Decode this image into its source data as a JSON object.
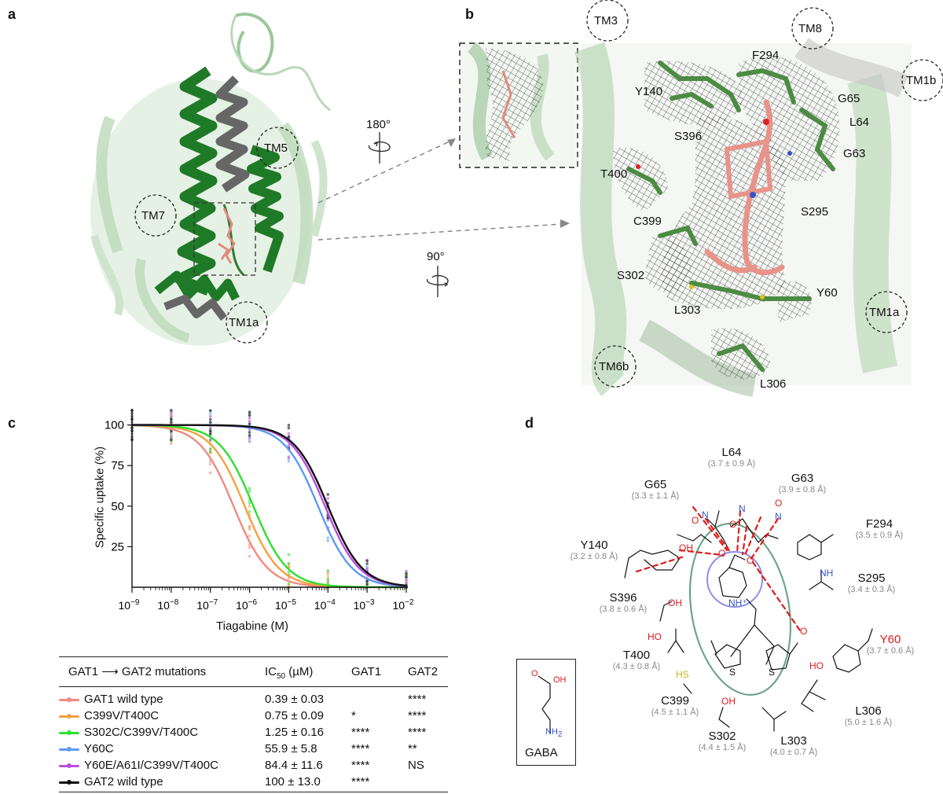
{
  "panels": {
    "a": "a",
    "b": "b",
    "c": "c",
    "d": "d"
  },
  "panel_a": {
    "tm_labels": [
      "TM5",
      "TM7",
      "TM1a"
    ],
    "rotation_180": "180°",
    "rotation_90": "90°"
  },
  "panel_b": {
    "tm_labels": [
      "TM3",
      "TM8",
      "TM1b",
      "TM1a",
      "TM6b"
    ],
    "residues": [
      "F294",
      "Y140",
      "G65",
      "L64",
      "S396",
      "G63",
      "T400",
      "S295",
      "C399",
      "S302",
      "Y60",
      "L303",
      "L306"
    ]
  },
  "chart_data": {
    "type": "line",
    "xlabel": "Tiagabine (M)",
    "ylabel": "Specific uptake (%)",
    "xscale": "log",
    "xlim": [
      1e-09,
      0.01
    ],
    "ylim": [
      0,
      110
    ],
    "x_tick_labels": [
      "10−9",
      "10−8",
      "10−7",
      "10−6",
      "10−5",
      "10−4",
      "10−3",
      "10−2"
    ],
    "y_ticks": [
      25,
      50,
      75,
      100
    ],
    "series": [
      {
        "name": "GAT1 wild type",
        "color": "#f08a80",
        "ic50": 3.9e-07
      },
      {
        "name": "C399V/T400C",
        "color": "#f5a040",
        "ic50": 7.5e-07
      },
      {
        "name": "S302C/C399V/T400C",
        "color": "#2ee02e",
        "ic50": 1.25e-06
      },
      {
        "name": "Y60C",
        "color": "#5b9cf0",
        "ic50": 5.59e-05
      },
      {
        "name": "Y60E/A61I/C399V/T400C",
        "color": "#b84fe0",
        "ic50": 8.44e-05
      },
      {
        "name": "GAT2 wild type",
        "color": "#111111",
        "ic50": 0.0001
      }
    ]
  },
  "table": {
    "header_mut": "GAT1 ⟶ GAT2 mutations",
    "header_ic": "IC",
    "header_ic_sub": "50",
    "header_ic_unit": " (µM)",
    "header_gat1": "GAT1",
    "header_gat2": "GAT2",
    "rows": [
      {
        "name": "GAT1 wild type",
        "ic": "0.39 ± 0.03",
        "gat1": "",
        "gat2": "****",
        "color": "#f08a80"
      },
      {
        "name": "C399V/T400C",
        "ic": "0.75 ± 0.09",
        "gat1": "*",
        "gat2": "****",
        "color": "#f5a040"
      },
      {
        "name": "S302C/C399V/T400C",
        "ic": "1.25 ± 0.16",
        "gat1": "****",
        "gat2": "****",
        "color": "#2ee02e"
      },
      {
        "name": "Y60C",
        "ic": "55.9 ± 5.8",
        "gat1": "****",
        "gat2": "**",
        "color": "#5b9cf0"
      },
      {
        "name": "Y60E/A61I/C399V/T400C",
        "ic": "84.4 ± 11.6",
        "gat1": "****",
        "gat2": "NS",
        "color": "#b84fe0"
      },
      {
        "name": "GAT2 wild type",
        "ic": "100  ± 13.0",
        "gat1": "****",
        "gat2": "",
        "color": "#111111"
      }
    ]
  },
  "panel_d": {
    "residues": [
      {
        "name": "L64",
        "dist": "(3.7 ± 0.9 Å)"
      },
      {
        "name": "G65",
        "dist": "(3.3 ± 1.1 Å)"
      },
      {
        "name": "G63",
        "dist": "(3.9 ± 0.8 Å)"
      },
      {
        "name": "F294",
        "dist": "(3.5 ± 0.9 Å)"
      },
      {
        "name": "Y140",
        "dist": "(3.2 ± 0.8 Å)"
      },
      {
        "name": "S295",
        "dist": "(3.4 ± 0.3 Å)"
      },
      {
        "name": "S396",
        "dist": "(3.8 ± 0.6 Å)"
      },
      {
        "name": "Y60",
        "dist": "(3.7 ± 0.6 Å)"
      },
      {
        "name": "T400",
        "dist": "(4.3 ± 0.8 Å)"
      },
      {
        "name": "C399",
        "dist": "(4.5 ± 1.1 Å)"
      },
      {
        "name": "L306",
        "dist": "(5.0 ± 1.6 Å)"
      },
      {
        "name": "S302",
        "dist": "(4.4 ± 1.5 Å)"
      },
      {
        "name": "L303",
        "dist": "(4.0 ± 0.7 Å)"
      }
    ],
    "gaba_label": "GABA",
    "atoms": {
      "o": "O",
      "oh": "OH",
      "n": "N",
      "nh": "NH",
      "nh_plus": "NH⁺",
      "h": "H",
      "s": "S",
      "hs": "HS",
      "ho": "HO",
      "nh2": "NH2"
    }
  }
}
